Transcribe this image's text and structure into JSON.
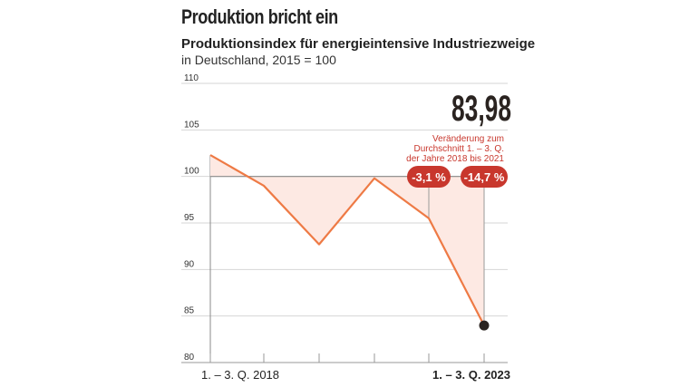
{
  "headline": "Produktion bricht ein",
  "subtitle": "Produktionsindex für energieintensive Industriezweige",
  "subline": "in Deutschland, 2015 = 100",
  "colors": {
    "line": "#ee7a45",
    "fill": "#fde9e3",
    "badge": "#c8372d",
    "note": "#c8372d",
    "dot": "#2a2320"
  },
  "chart_data": {
    "type": "area",
    "title": "Produktionsindex für energieintensive Industriezweige",
    "subtitle": "in Deutschland, 2015 = 100",
    "reference_value": 100,
    "x": [
      0,
      1,
      2,
      3,
      4,
      5
    ],
    "values": [
      102.3,
      99.0,
      92.7,
      99.8,
      95.5,
      83.98
    ],
    "ylim": [
      80,
      110
    ],
    "yticks": [
      80,
      85,
      90,
      95,
      100,
      105,
      110
    ],
    "xtick_labels": [
      "1. – 3. Q. 2018",
      "",
      "",
      "",
      "",
      "1. – 3. Q. 2023"
    ],
    "grid": true,
    "last_value_label": "83,98",
    "annotation": "Veränderung zum Durchschnitt 1. – 3. Q. der Jahre 2018 bis 2021",
    "annotation_lines": [
      "Veränderung zum",
      "Durchschnitt 1. – 3. Q.",
      "der Jahre 2018 bis 2021"
    ],
    "badges": [
      {
        "label": "-3,1 %",
        "x": 4
      },
      {
        "label": "-14,7 %",
        "x": 5
      }
    ]
  }
}
